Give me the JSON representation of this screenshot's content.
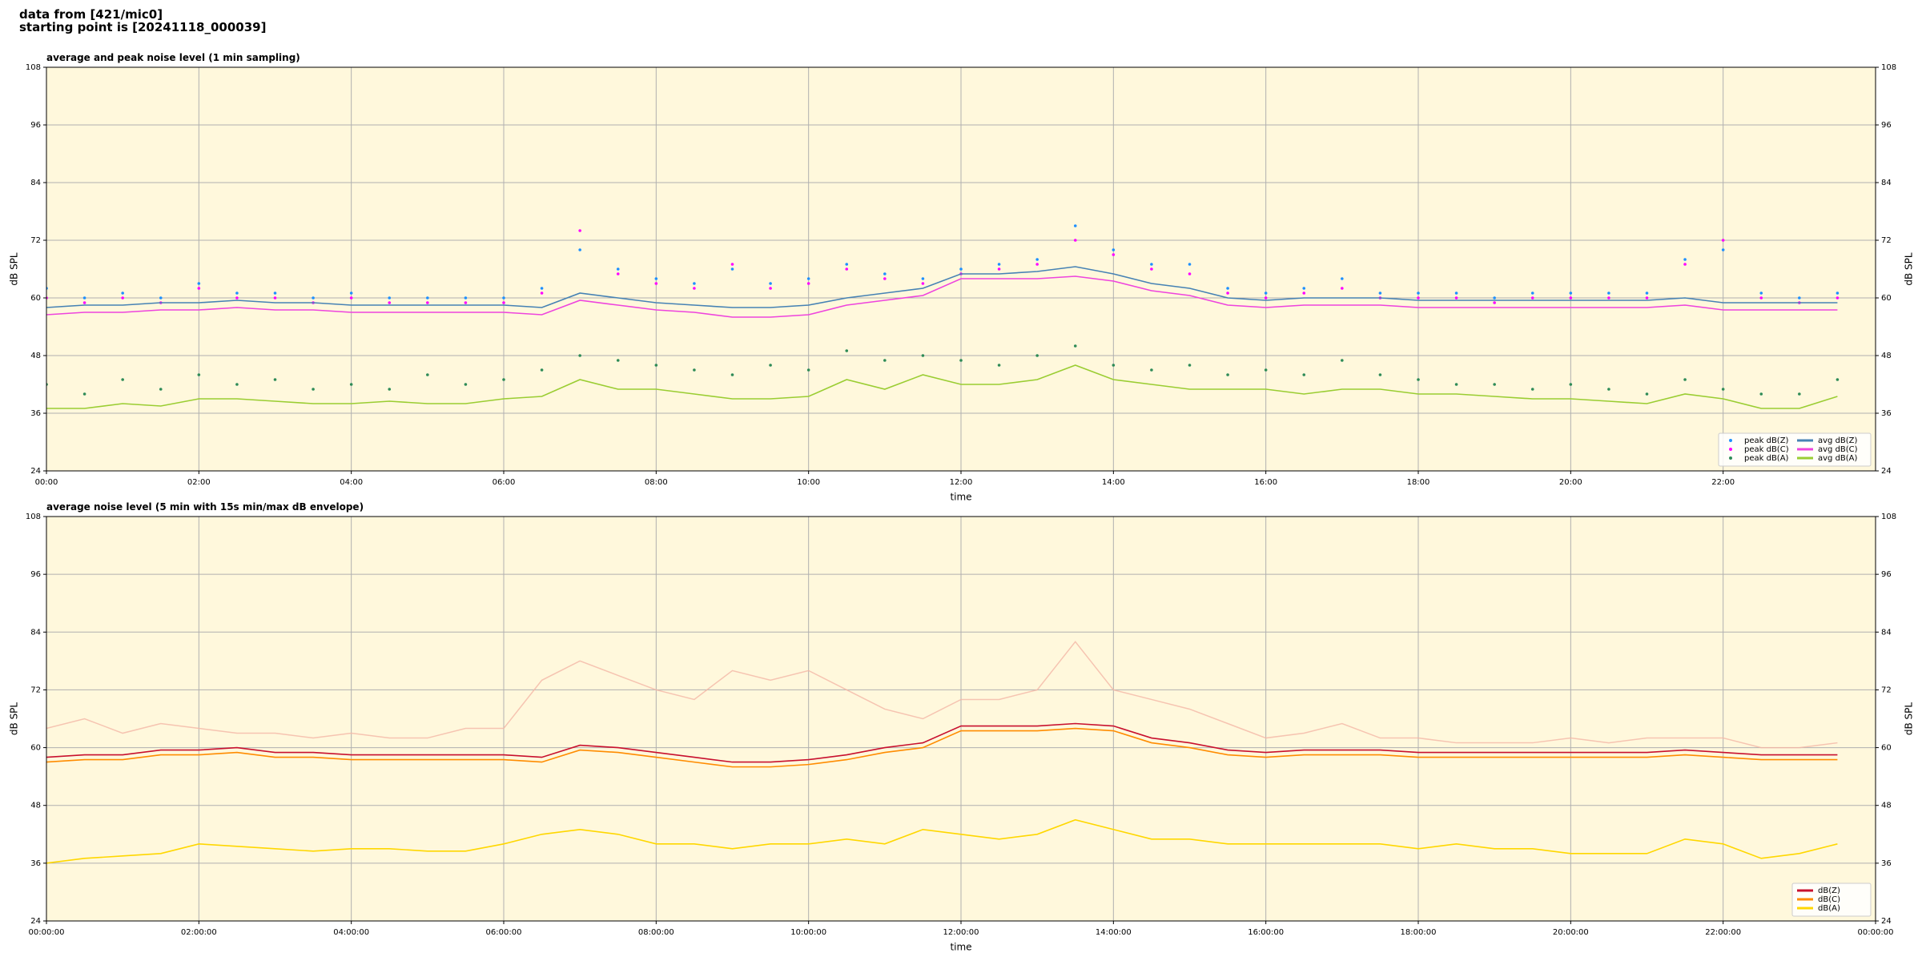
{
  "figure": {
    "title_lines": [
      "data from [421/mic0]",
      "starting point is [20241118_000039]"
    ]
  },
  "chart_data": [
    {
      "type": "line",
      "title": "average and peak noise level (1 min sampling)",
      "xlabel": "time",
      "ylabel": "dB SPL",
      "xlim": [
        0,
        24
      ],
      "ylim": [
        24,
        108
      ],
      "yticks": [
        24,
        36,
        48,
        60,
        72,
        84,
        96,
        108
      ],
      "xticks": [
        {
          "value": 0,
          "label": "00:00"
        },
        {
          "value": 2,
          "label": "02:00"
        },
        {
          "value": 4,
          "label": "04:00"
        },
        {
          "value": 6,
          "label": "06:00"
        },
        {
          "value": 8,
          "label": "08:00"
        },
        {
          "value": 10,
          "label": "10:00"
        },
        {
          "value": 12,
          "label": "12:00"
        },
        {
          "value": 14,
          "label": "14:00"
        },
        {
          "value": 16,
          "label": "16:00"
        },
        {
          "value": 18,
          "label": "18:00"
        },
        {
          "value": 20,
          "label": "20:00"
        },
        {
          "value": 22,
          "label": "22:00"
        }
      ],
      "grid": true,
      "legend": "lower right",
      "background": "#fff8dc",
      "x": [
        0,
        0.5,
        1,
        1.5,
        2,
        2.5,
        3,
        3.5,
        4,
        4.5,
        5,
        5.5,
        6,
        6.5,
        7,
        7.5,
        8,
        8.5,
        9,
        9.5,
        10,
        10.5,
        11,
        11.5,
        12,
        12.5,
        13,
        13.5,
        14,
        14.5,
        15,
        15.5,
        16,
        16.5,
        17,
        17.5,
        18,
        18.5,
        19,
        19.5,
        20,
        20.5,
        21,
        21.5,
        22,
        22.5,
        23,
        23.5
      ],
      "series": [
        {
          "name": "peak dB(Z)",
          "type": "scatter",
          "color": "#1e90ff",
          "values": [
            62,
            60,
            61,
            60,
            63,
            61,
            61,
            60,
            61,
            60,
            60,
            60,
            60,
            62,
            70,
            66,
            64,
            63,
            66,
            63,
            64,
            67,
            65,
            64,
            66,
            67,
            68,
            75,
            70,
            67,
            67,
            62,
            61,
            62,
            64,
            61,
            61,
            61,
            60,
            61,
            61,
            61,
            61,
            68,
            70,
            61,
            60,
            61
          ]
        },
        {
          "name": "peak dB(C)",
          "type": "scatter",
          "color": "#ff00ff",
          "values": [
            60,
            59,
            60,
            59,
            62,
            60,
            60,
            59,
            60,
            59,
            59,
            59,
            59,
            61,
            74,
            65,
            63,
            62,
            67,
            62,
            63,
            66,
            64,
            63,
            65,
            66,
            67,
            72,
            69,
            66,
            65,
            61,
            60,
            61,
            62,
            60,
            60,
            60,
            59,
            60,
            60,
            60,
            60,
            67,
            72,
            60,
            59,
            60
          ]
        },
        {
          "name": "peak dB(A)",
          "type": "scatter",
          "color": "#2e8b57",
          "values": [
            42,
            40,
            43,
            41,
            44,
            42,
            43,
            41,
            42,
            41,
            44,
            42,
            43,
            45,
            48,
            47,
            46,
            45,
            44,
            46,
            45,
            49,
            47,
            48,
            47,
            46,
            48,
            50,
            46,
            45,
            46,
            44,
            45,
            44,
            47,
            44,
            43,
            42,
            42,
            41,
            42,
            41,
            40,
            43,
            41,
            40,
            40,
            43
          ]
        },
        {
          "name": "avg dB(Z)",
          "type": "line",
          "color": "#4682b4",
          "values": [
            58,
            58.5,
            58.5,
            59,
            59,
            59.5,
            59,
            59,
            58.5,
            58.5,
            58.5,
            58.5,
            58.5,
            58,
            61,
            60,
            59,
            58.5,
            58,
            58,
            58.5,
            60,
            61,
            62,
            65,
            65,
            65.5,
            66.5,
            65,
            63,
            62,
            60,
            59.5,
            60,
            60,
            60,
            59.5,
            59.5,
            59.5,
            59.5,
            59.5,
            59.5,
            59.5,
            60,
            59,
            59,
            59,
            59
          ]
        },
        {
          "name": "avg dB(C)",
          "type": "line",
          "color": "#ee44dd",
          "values": [
            56.5,
            57,
            57,
            57.5,
            57.5,
            58,
            57.5,
            57.5,
            57,
            57,
            57,
            57,
            57,
            56.5,
            59.5,
            58.5,
            57.5,
            57,
            56,
            56,
            56.5,
            58.5,
            59.5,
            60.5,
            64,
            64,
            64,
            64.5,
            63.5,
            61.5,
            60.5,
            58.5,
            58,
            58.5,
            58.5,
            58.5,
            58,
            58,
            58,
            58,
            58,
            58,
            58,
            58.5,
            57.5,
            57.5,
            57.5,
            57.5
          ]
        },
        {
          "name": "avg dB(A)",
          "type": "line",
          "color": "#9acd32",
          "values": [
            37,
            37,
            38,
            37.5,
            39,
            39,
            38.5,
            38,
            38,
            38.5,
            38,
            38,
            39,
            39.5,
            43,
            41,
            41,
            40,
            39,
            39,
            39.5,
            43,
            41,
            44,
            42,
            42,
            43,
            46,
            43,
            42,
            41,
            41,
            41,
            40,
            41,
            41,
            40,
            40,
            39.5,
            39,
            39,
            38.5,
            38,
            40,
            39,
            37,
            37,
            39.5
          ]
        }
      ]
    },
    {
      "type": "line",
      "title": "average noise level (5 min with 15s min/max dB envelope)",
      "xlabel": "time",
      "ylabel": "dB SPL",
      "xlim": [
        0,
        24
      ],
      "ylim": [
        24,
        108
      ],
      "yticks": [
        24,
        36,
        48,
        60,
        72,
        84,
        96,
        108
      ],
      "xticks": [
        {
          "value": 0,
          "label": "00:00:00"
        },
        {
          "value": 2,
          "label": "02:00:00"
        },
        {
          "value": 4,
          "label": "04:00:00"
        },
        {
          "value": 6,
          "label": "06:00:00"
        },
        {
          "value": 8,
          "label": "08:00:00"
        },
        {
          "value": 10,
          "label": "10:00:00"
        },
        {
          "value": 12,
          "label": "12:00:00"
        },
        {
          "value": 14,
          "label": "14:00:00"
        },
        {
          "value": 16,
          "label": "16:00:00"
        },
        {
          "value": 18,
          "label": "18:00:00"
        },
        {
          "value": 20,
          "label": "20:00:00"
        },
        {
          "value": 22,
          "label": "22:00:00"
        },
        {
          "value": 24,
          "label": "00:00:00"
        }
      ],
      "grid": true,
      "legend": "lower right",
      "background": "#fff8dc",
      "x": [
        0,
        0.5,
        1,
        1.5,
        2,
        2.5,
        3,
        3.5,
        4,
        4.5,
        5,
        5.5,
        6,
        6.5,
        7,
        7.5,
        8,
        8.5,
        9,
        9.5,
        10,
        10.5,
        11,
        11.5,
        12,
        12.5,
        13,
        13.5,
        14,
        14.5,
        15,
        15.5,
        16,
        16.5,
        17,
        17.5,
        18,
        18.5,
        19,
        19.5,
        20,
        20.5,
        21,
        21.5,
        22,
        22.5,
        23,
        23.5
      ],
      "envelope": {
        "color": "#f4b6a6",
        "upper": [
          64,
          66,
          63,
          65,
          64,
          63,
          63,
          62,
          63,
          62,
          62,
          64,
          64,
          74,
          78,
          75,
          72,
          70,
          76,
          74,
          76,
          72,
          68,
          66,
          70,
          70,
          72,
          82,
          72,
          70,
          68,
          65,
          62,
          63,
          65,
          62,
          62,
          61,
          61,
          61,
          62,
          61,
          62,
          62,
          62,
          60,
          60,
          61
        ]
      },
      "series": [
        {
          "name": "dB(Z)",
          "type": "line",
          "color": "#c8102e",
          "values": [
            58,
            58.5,
            58.5,
            59.5,
            59.5,
            60,
            59,
            59,
            58.5,
            58.5,
            58.5,
            58.5,
            58.5,
            58,
            60.5,
            60,
            59,
            58,
            57,
            57,
            57.5,
            58.5,
            60,
            61,
            64.5,
            64.5,
            64.5,
            65,
            64.5,
            62,
            61,
            59.5,
            59,
            59.5,
            59.5,
            59.5,
            59,
            59,
            59,
            59,
            59,
            59,
            59,
            59.5,
            59,
            58.5,
            58.5,
            58.5
          ]
        },
        {
          "name": "dB(C)",
          "type": "line",
          "color": "#ff8c00",
          "values": [
            57,
            57.5,
            57.5,
            58.5,
            58.5,
            59,
            58,
            58,
            57.5,
            57.5,
            57.5,
            57.5,
            57.5,
            57,
            59.5,
            59,
            58,
            57,
            56,
            56,
            56.5,
            57.5,
            59,
            60,
            63.5,
            63.5,
            63.5,
            64,
            63.5,
            61,
            60,
            58.5,
            58,
            58.5,
            58.5,
            58.5,
            58,
            58,
            58,
            58,
            58,
            58,
            58,
            58.5,
            58,
            57.5,
            57.5,
            57.5
          ]
        },
        {
          "name": "dB(A)",
          "type": "line",
          "color": "#ffd700",
          "values": [
            36,
            37,
            37.5,
            38,
            40,
            39.5,
            39,
            38.5,
            39,
            39,
            38.5,
            38.5,
            40,
            42,
            43,
            42,
            40,
            40,
            39,
            40,
            40,
            41,
            40,
            43,
            42,
            41,
            42,
            45,
            43,
            41,
            41,
            40,
            40,
            40,
            40,
            40,
            39,
            40,
            39,
            39,
            38,
            38,
            38,
            41,
            40,
            37,
            38,
            40
          ]
        }
      ]
    }
  ]
}
